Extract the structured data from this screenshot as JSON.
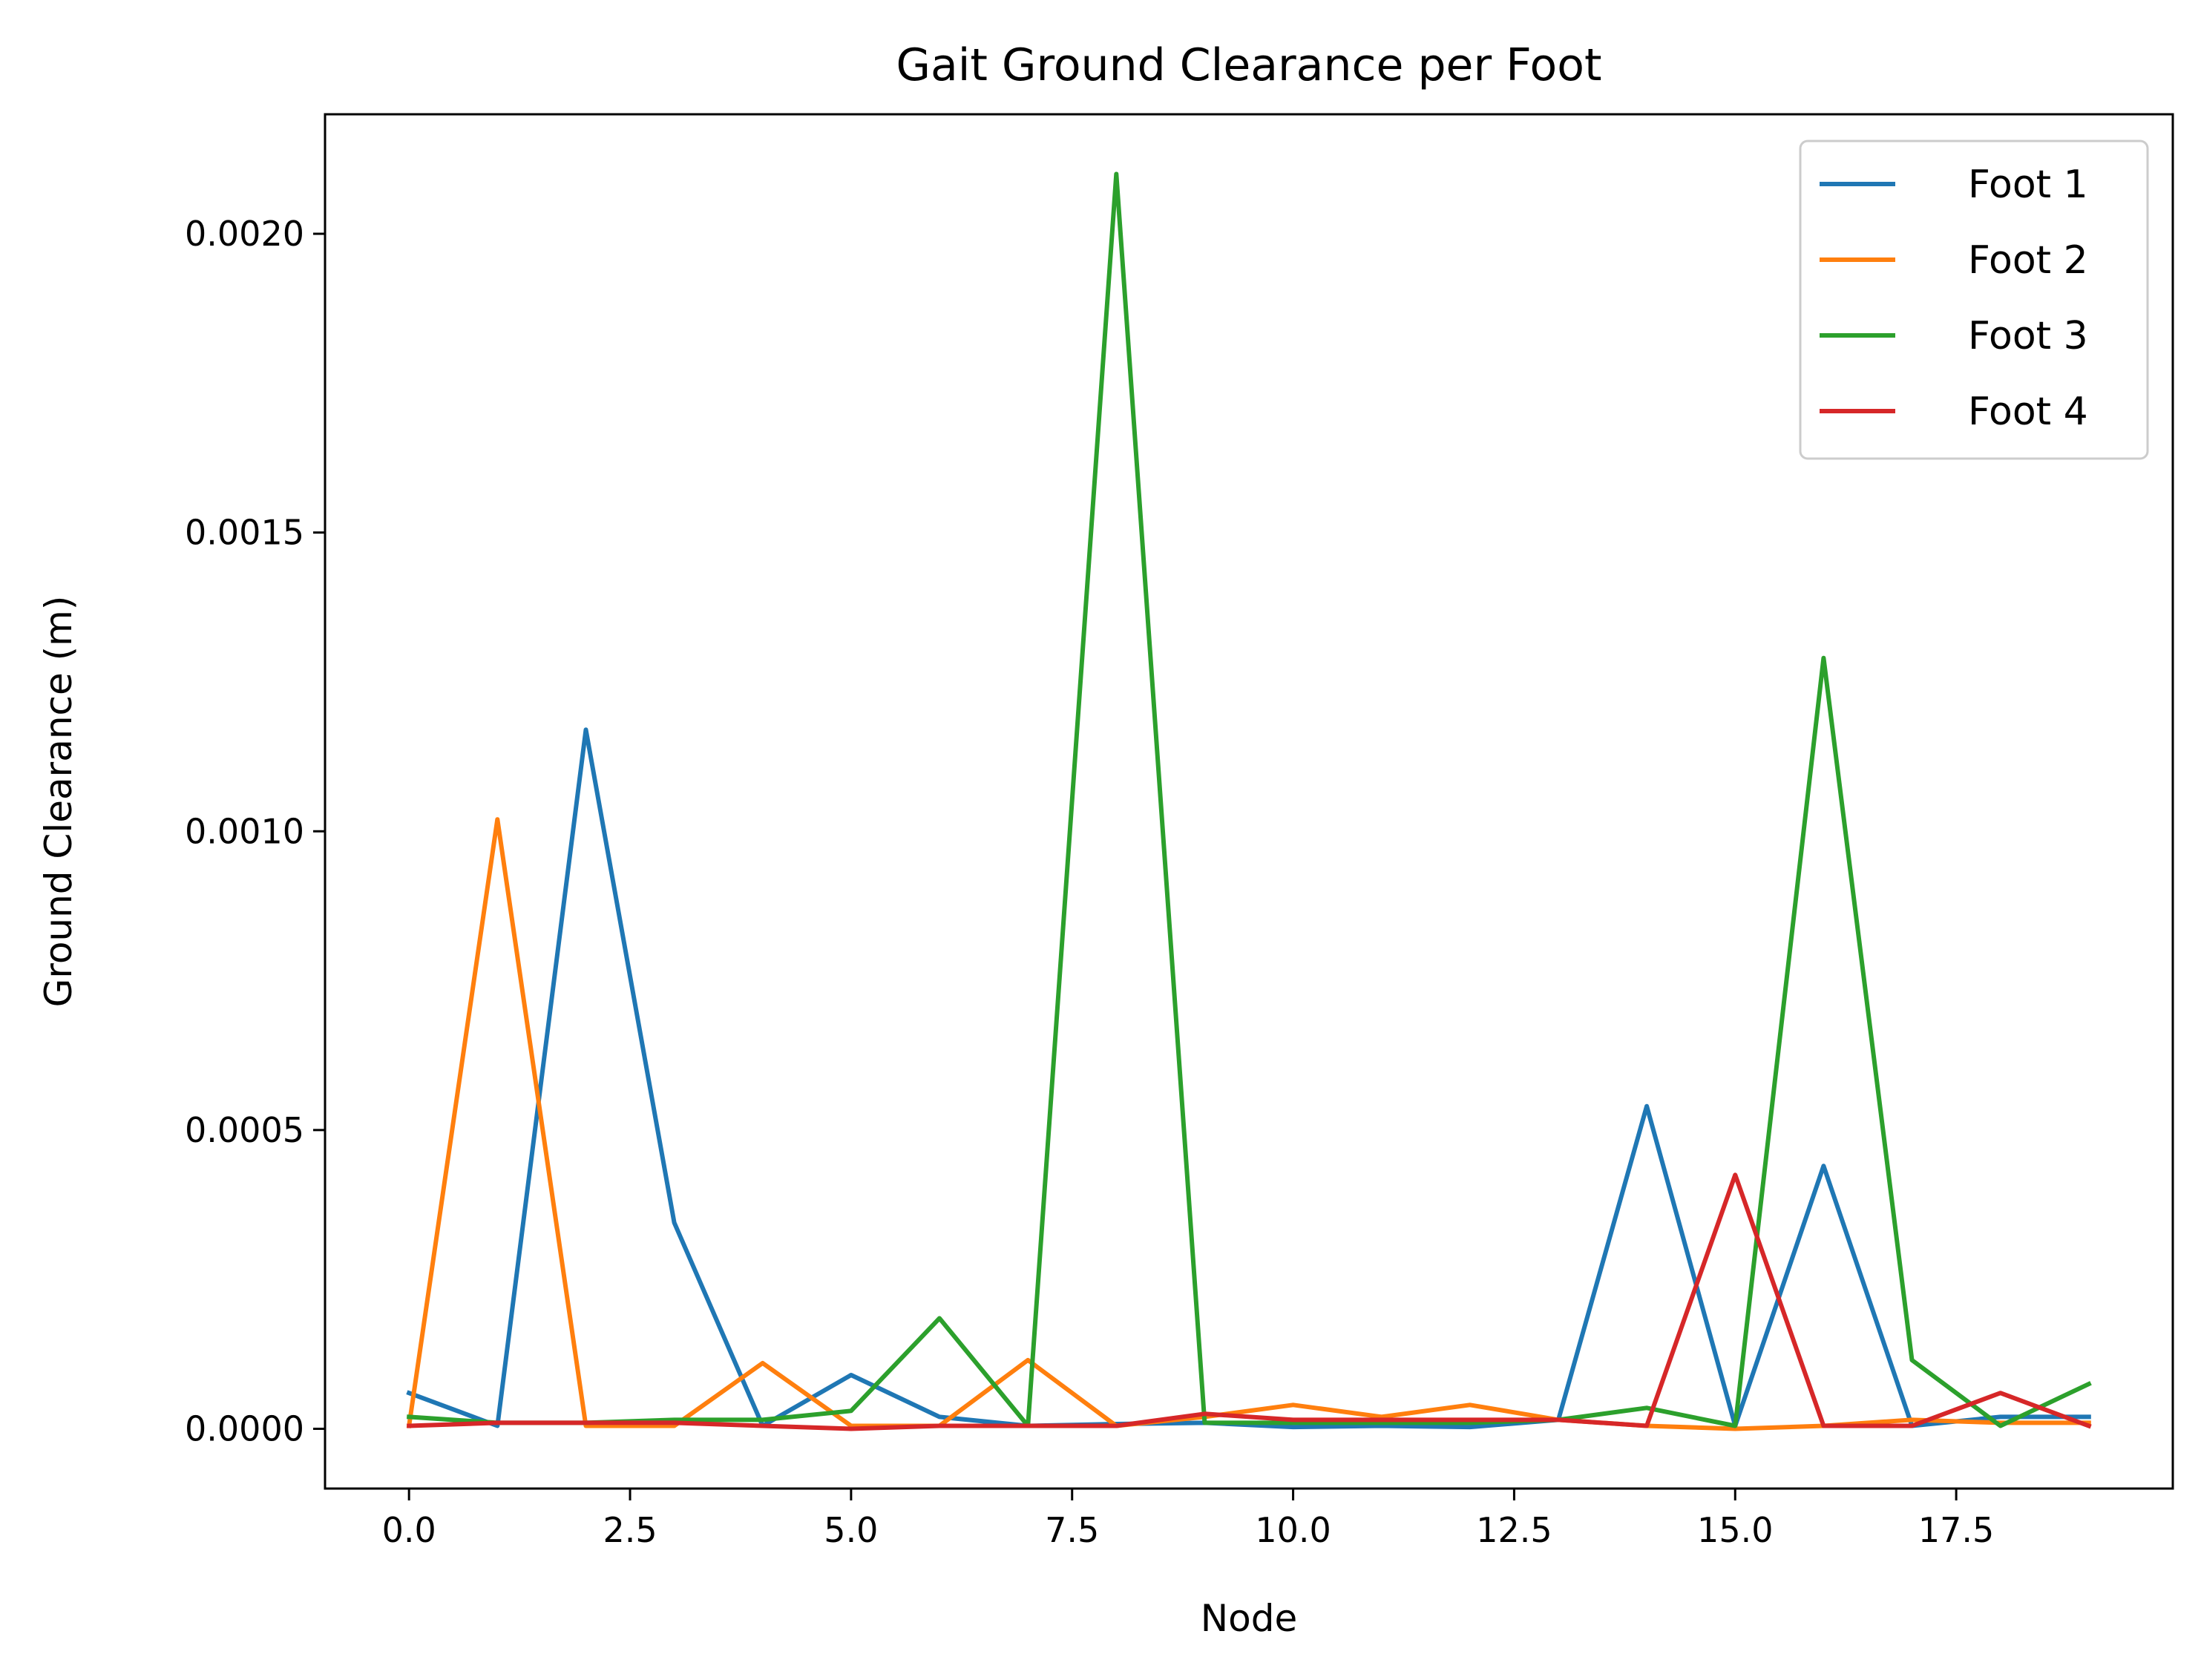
{
  "chart_data": {
    "type": "line",
    "title": "Gait Ground Clearance per Foot",
    "xlabel": "Node",
    "ylabel": "Ground Clearance (m)",
    "xlim": [
      -0.95,
      19.95
    ],
    "ylim": [
      -0.0001,
      0.0022
    ],
    "xticks": [
      0.0,
      2.5,
      5.0,
      7.5,
      10.0,
      12.5,
      15.0,
      17.5
    ],
    "xtick_labels": [
      "0.0",
      "2.5",
      "5.0",
      "7.5",
      "10.0",
      "12.5",
      "15.0",
      "17.5"
    ],
    "yticks": [
      0.0,
      0.0005,
      0.001,
      0.0015,
      0.002
    ],
    "ytick_labels": [
      "0.0000",
      "0.0005",
      "0.0010",
      "0.0015",
      "0.0020"
    ],
    "grid": false,
    "legend_position": "top-right",
    "x": [
      0,
      1,
      2,
      3,
      4,
      5,
      6,
      7,
      8,
      9,
      10,
      11,
      12,
      13,
      14,
      15,
      16,
      17,
      18,
      19
    ],
    "series": [
      {
        "name": "Foot 1",
        "color": "#1f77b4",
        "values": [
          6e-05,
          5e-06,
          0.00117,
          0.000345,
          5e-06,
          9e-05,
          2e-05,
          5e-06,
          8e-06,
          1e-05,
          3e-06,
          5e-06,
          3e-06,
          1.5e-05,
          0.00054,
          5e-06,
          0.00044,
          5e-06,
          2e-05,
          2e-05
        ]
      },
      {
        "name": "Foot 2",
        "color": "#ff7f0e",
        "values": [
          5e-06,
          0.00102,
          5e-06,
          5e-06,
          0.00011,
          5e-06,
          5e-06,
          0.000115,
          5e-06,
          2e-05,
          4e-05,
          2e-05,
          4e-05,
          1.5e-05,
          5e-06,
          0.0,
          5e-06,
          1.5e-05,
          1e-05,
          1e-05
        ]
      },
      {
        "name": "Foot 3",
        "color": "#2ca02c",
        "values": [
          2e-05,
          1e-05,
          1e-05,
          1.5e-05,
          1.5e-05,
          3e-05,
          0.000185,
          5e-06,
          0.0021,
          1e-05,
          1e-05,
          1e-05,
          1e-05,
          1.5e-05,
          3.5e-05,
          5e-06,
          0.00129,
          0.000115,
          5e-06,
          7.5e-05
        ]
      },
      {
        "name": "Foot 4",
        "color": "#d62728",
        "values": [
          5e-06,
          1e-05,
          1e-05,
          1e-05,
          5e-06,
          0.0,
          5e-06,
          5e-06,
          5e-06,
          2.5e-05,
          1.5e-05,
          1.5e-05,
          1.5e-05,
          1.5e-05,
          5e-06,
          0.000425,
          5e-06,
          5e-06,
          6e-05,
          5e-06
        ]
      }
    ]
  }
}
